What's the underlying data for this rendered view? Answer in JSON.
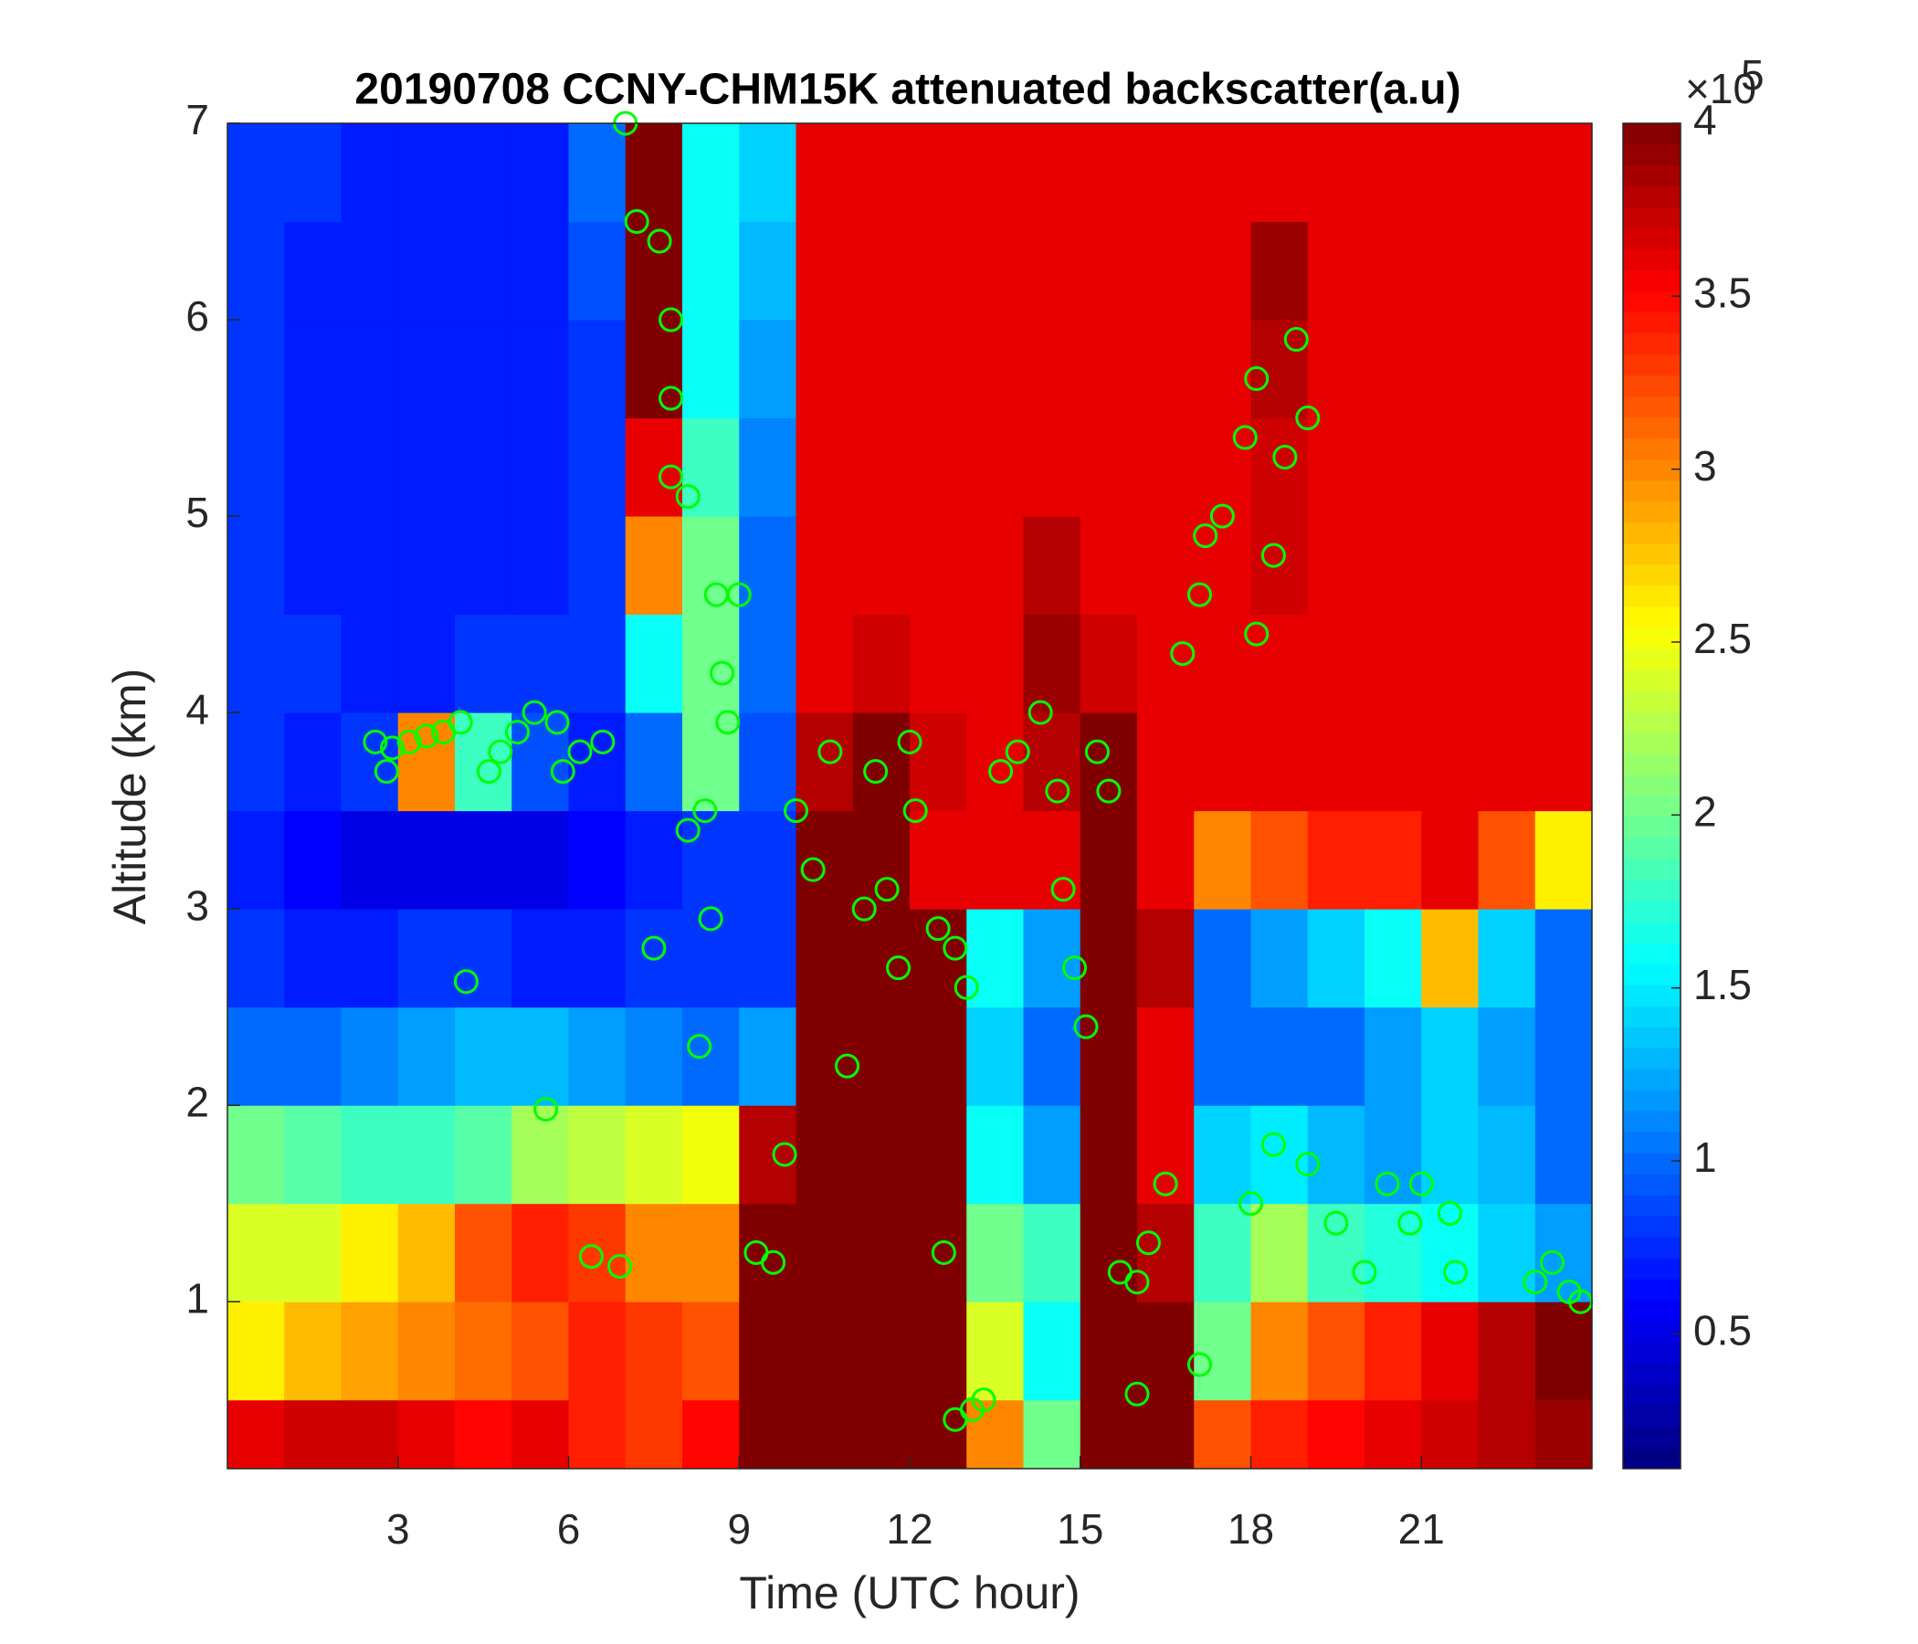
{
  "chart_data": {
    "type": "heatmap",
    "title": "20190708 CCNY-CHM15K attenuated backscatter(a.u)",
    "x_label": "Time (UTC hour)",
    "y_label": "Altitude (km)",
    "xlim": [
      0,
      24
    ],
    "xticks": [
      3,
      6,
      9,
      12,
      15,
      18,
      21
    ],
    "ylim": [
      0.15,
      7
    ],
    "yticks": [
      1,
      2,
      3,
      4,
      5,
      6,
      7
    ],
    "colormap": "jet",
    "clim": [
      0.11,
      4
    ],
    "cticks": [
      0.5,
      1,
      1.5,
      2,
      2.5,
      3,
      3.5,
      4
    ],
    "colorbar_multiplier": "×10",
    "colorbar_exponent": "5",
    "x_edges": [
      0,
      1,
      2,
      3,
      4,
      5,
      6,
      7,
      8,
      9,
      10,
      11,
      12,
      13,
      14,
      15,
      16,
      17,
      18,
      19,
      20,
      21,
      22,
      23,
      24
    ],
    "y_edges": [
      0.15,
      0.5,
      1,
      1.5,
      2,
      2.5,
      3,
      3.5,
      4,
      4.5,
      5,
      5.5,
      6,
      6.5,
      7
    ],
    "z": [
      [
        3.6,
        3.7,
        3.7,
        3.6,
        3.5,
        3.6,
        3.4,
        3.3,
        3.5,
        4,
        4,
        4,
        4,
        3,
        2,
        4,
        4,
        3.2,
        3.4,
        3.5,
        3.6,
        3.7,
        3.8,
        3.9
      ],
      [
        2.6,
        2.8,
        2.9,
        3.0,
        3.1,
        3.2,
        3.4,
        3.3,
        3.2,
        4,
        4,
        4,
        4,
        2.4,
        1.6,
        4,
        4,
        2.0,
        3.0,
        3.2,
        3.4,
        3.6,
        3.8,
        4
      ],
      [
        2.4,
        2.4,
        2.6,
        2.8,
        3.2,
        3.4,
        3.3,
        3.0,
        3.0,
        4,
        4,
        4,
        4,
        2.0,
        1.8,
        4,
        3.8,
        1.8,
        2.2,
        1.8,
        1.7,
        1.6,
        1.4,
        1.2
      ],
      [
        2.0,
        1.9,
        1.8,
        1.8,
        1.9,
        2.2,
        2.3,
        2.4,
        2.5,
        3.8,
        4,
        4,
        4,
        1.6,
        1.2,
        4,
        3.6,
        1.4,
        1.5,
        1.3,
        1.2,
        1.4,
        1.3,
        1.0
      ],
      [
        1.0,
        1.0,
        1.1,
        1.2,
        1.3,
        1.3,
        1.2,
        1.1,
        1.0,
        1.2,
        4,
        4,
        4,
        1.4,
        1.0,
        4,
        3.6,
        1.0,
        1.0,
        1.0,
        1.2,
        1.4,
        1.2,
        1.0
      ],
      [
        0.8,
        0.7,
        0.7,
        0.8,
        0.8,
        0.7,
        0.7,
        0.8,
        0.8,
        0.8,
        4,
        4,
        4,
        1.6,
        1.2,
        4,
        3.8,
        1.0,
        1.2,
        1.4,
        1.6,
        2.8,
        1.4,
        1.0
      ],
      [
        0.7,
        0.6,
        0.5,
        0.5,
        0.5,
        0.5,
        0.6,
        0.7,
        0.8,
        0.8,
        4,
        4,
        3.6,
        3.6,
        3.6,
        4,
        3.6,
        3.0,
        3.2,
        3.4,
        3.4,
        3.6,
        3.2,
        2.6
      ],
      [
        0.8,
        0.7,
        0.8,
        3.0,
        1.8,
        0.9,
        0.7,
        1.0,
        2.0,
        0.9,
        3.8,
        4,
        3.7,
        3.6,
        3.8,
        4,
        3.6,
        3.6,
        3.6,
        3.6,
        3.6,
        3.6,
        3.6,
        3.6
      ],
      [
        0.8,
        0.8,
        0.7,
        0.7,
        0.8,
        0.8,
        0.8,
        1.6,
        2.0,
        1.0,
        3.6,
        3.7,
        3.6,
        3.6,
        3.9,
        3.7,
        3.6,
        3.6,
        3.6,
        3.6,
        3.6,
        3.6,
        3.6,
        3.6
      ],
      [
        0.8,
        0.7,
        0.7,
        0.7,
        0.7,
        0.7,
        0.8,
        3.0,
        2.0,
        1.0,
        3.6,
        3.6,
        3.6,
        3.6,
        3.8,
        3.6,
        3.6,
        3.6,
        3.7,
        3.6,
        3.6,
        3.6,
        3.6,
        3.6
      ],
      [
        0.8,
        0.7,
        0.7,
        0.7,
        0.7,
        0.7,
        0.8,
        3.6,
        1.8,
        1.1,
        3.6,
        3.6,
        3.6,
        3.6,
        3.6,
        3.6,
        3.6,
        3.6,
        3.7,
        3.6,
        3.6,
        3.6,
        3.6,
        3.6
      ],
      [
        0.8,
        0.7,
        0.7,
        0.7,
        0.7,
        0.7,
        0.8,
        4,
        1.6,
        1.2,
        3.6,
        3.6,
        3.6,
        3.6,
        3.6,
        3.6,
        3.6,
        3.6,
        3.8,
        3.6,
        3.6,
        3.6,
        3.6,
        3.6
      ],
      [
        0.8,
        0.7,
        0.7,
        0.7,
        0.7,
        0.7,
        0.9,
        4,
        1.6,
        1.3,
        3.6,
        3.6,
        3.6,
        3.6,
        3.6,
        3.6,
        3.6,
        3.6,
        3.9,
        3.6,
        3.6,
        3.6,
        3.6,
        3.6
      ],
      [
        0.8,
        0.8,
        0.7,
        0.7,
        0.7,
        0.7,
        1.0,
        4,
        1.6,
        1.4,
        3.6,
        3.6,
        3.6,
        3.6,
        3.6,
        3.6,
        3.6,
        3.6,
        3.6,
        3.6,
        3.6,
        3.6,
        3.6,
        3.6
      ]
    ],
    "points": {
      "color": "#00ff00",
      "x": [
        2.6,
        2.9,
        3.2,
        3.5,
        3.8,
        4.1,
        2.8,
        4.6,
        4.8,
        5.1,
        5.4,
        5.8,
        6.2,
        6.6,
        5.9,
        4.2,
        5.6,
        6.4,
        6.9,
        7.0,
        7.2,
        7.6,
        7.8,
        7.8,
        7.8,
        8.1,
        8.6,
        8.7,
        8.8,
        9.0,
        8.4,
        8.1,
        7.5,
        8.5,
        8.3,
        9.3,
        9.6,
        9.8,
        10.0,
        10.3,
        10.6,
        10.9,
        11.2,
        11.6,
        11.4,
        12.0,
        12.1,
        11.8,
        12.5,
        12.8,
        12.6,
        12.8,
        13.1,
        13.3,
        13.0,
        13.6,
        13.9,
        14.3,
        14.6,
        14.7,
        14.9,
        15.1,
        15.3,
        15.5,
        15.7,
        16.0,
        16.2,
        16.5,
        16.8,
        17.1,
        17.2,
        17.5,
        17.9,
        18.1,
        18.1,
        18.4,
        18.6,
        18.8,
        19.0,
        17.1,
        16.0,
        18.0,
        18.4,
        19.0,
        19.5,
        20.0,
        20.4,
        20.8,
        21.0,
        21.5,
        21.6,
        23.0,
        23.3,
        23.6,
        23.8
      ],
      "y": [
        3.85,
        3.82,
        3.85,
        3.88,
        3.9,
        3.95,
        3.7,
        3.7,
        3.8,
        3.9,
        4.0,
        3.95,
        3.8,
        3.85,
        3.7,
        2.63,
        1.98,
        1.23,
        1.18,
        7.0,
        6.5,
        6.4,
        6.0,
        5.6,
        5.2,
        5.1,
        4.6,
        4.2,
        3.95,
        4.6,
        3.5,
        3.4,
        2.8,
        2.95,
        2.3,
        1.25,
        1.2,
        1.75,
        3.5,
        3.2,
        3.8,
        2.2,
        3.0,
        3.1,
        3.7,
        3.85,
        3.5,
        2.7,
        2.9,
        2.8,
        1.25,
        0.4,
        0.45,
        0.5,
        2.6,
        3.7,
        3.8,
        4.0,
        3.6,
        3.1,
        2.7,
        2.4,
        3.8,
        3.6,
        1.15,
        1.1,
        1.3,
        1.6,
        4.3,
        4.6,
        4.9,
        5.0,
        5.4,
        5.7,
        4.4,
        4.8,
        5.3,
        5.9,
        5.5,
        0.68,
        0.53,
        1.5,
        1.8,
        1.7,
        1.4,
        1.15,
        1.6,
        1.4,
        1.6,
        1.45,
        1.15,
        1.1,
        1.2,
        1.05,
        1.0
      ]
    }
  }
}
